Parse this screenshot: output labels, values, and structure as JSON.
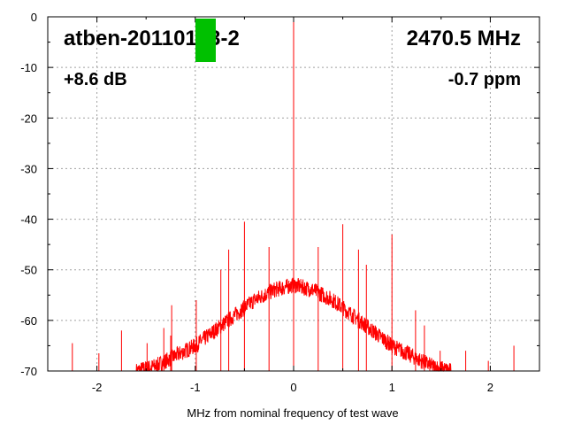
{
  "chart_data": {
    "type": "line",
    "title_left": "atben-20110123-2",
    "title_right": "2470.5 MHz",
    "info_left": "+8.6 dB",
    "info_right": "-0.7 ppm",
    "xlabel": "MHz from nominal frequency of test wave",
    "ylabel": "",
    "xlim": [
      -2.5,
      2.5
    ],
    "ylim": [
      -70,
      0
    ],
    "x_ticks": [
      -2,
      -1,
      0,
      1,
      2
    ],
    "y_ticks": [
      0,
      -10,
      -20,
      -30,
      -40,
      -50,
      -60,
      -70
    ],
    "grid": true,
    "series_color": "#ff0000",
    "marker_color": "#00c000",
    "noise_floor": {
      "x": [
        -1.6,
        -1.4,
        -1.2,
        -1.0,
        -0.8,
        -0.6,
        -0.4,
        -0.2,
        0.0,
        0.2,
        0.4,
        0.6,
        0.8,
        1.0,
        1.2,
        1.4,
        1.6
      ],
      "y": [
        -70,
        -69,
        -67,
        -65,
        -62,
        -59,
        -56,
        -54,
        -53,
        -54,
        -56,
        -59,
        -62,
        -65,
        -67,
        -69,
        -70
      ]
    },
    "spikes": [
      {
        "x": -2.25,
        "y": -64.5
      },
      {
        "x": -1.98,
        "y": -66.5
      },
      {
        "x": -1.75,
        "y": -62.0
      },
      {
        "x": -1.49,
        "y": -64.5
      },
      {
        "x": -1.32,
        "y": -61.5
      },
      {
        "x": -1.25,
        "y": -63.0
      },
      {
        "x": -1.24,
        "y": -57.0
      },
      {
        "x": -0.99,
        "y": -56.0
      },
      {
        "x": -0.74,
        "y": -50.0
      },
      {
        "x": -0.66,
        "y": -46.0
      },
      {
        "x": -0.5,
        "y": -40.5
      },
      {
        "x": -0.25,
        "y": -45.5
      },
      {
        "x": 0.0,
        "y": 0.0
      },
      {
        "x": 0.25,
        "y": -45.5
      },
      {
        "x": 0.5,
        "y": -41.0
      },
      {
        "x": 0.66,
        "y": -46.0
      },
      {
        "x": 0.74,
        "y": -49.0
      },
      {
        "x": 1.0,
        "y": -43.0
      },
      {
        "x": 1.24,
        "y": -58.0
      },
      {
        "x": 1.33,
        "y": -61.0
      },
      {
        "x": 1.49,
        "y": -66.0
      },
      {
        "x": 1.75,
        "y": -66.0
      },
      {
        "x": 1.98,
        "y": -68.0
      },
      {
        "x": 2.24,
        "y": -65.0
      }
    ]
  }
}
